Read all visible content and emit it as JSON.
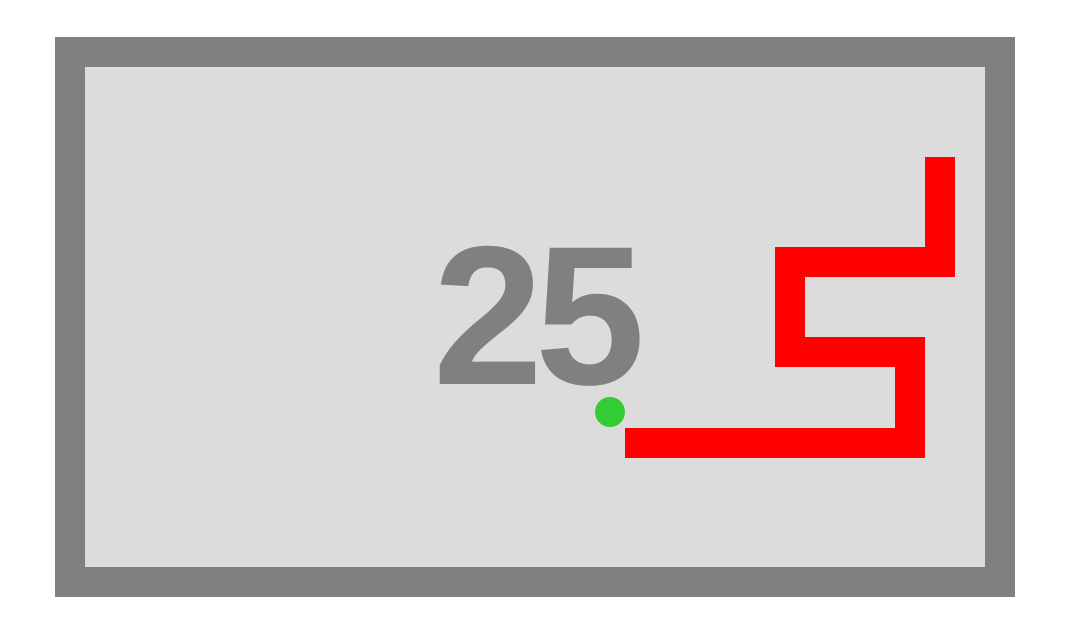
{
  "game": {
    "score": "25",
    "colors": {
      "border": "#808080",
      "field": "#dcdcdc",
      "score_text": "#808080",
      "snake": "#ff0000",
      "food": "#33cc33"
    },
    "snake_icon": "snake-body",
    "food_icon": "food-pellet"
  }
}
